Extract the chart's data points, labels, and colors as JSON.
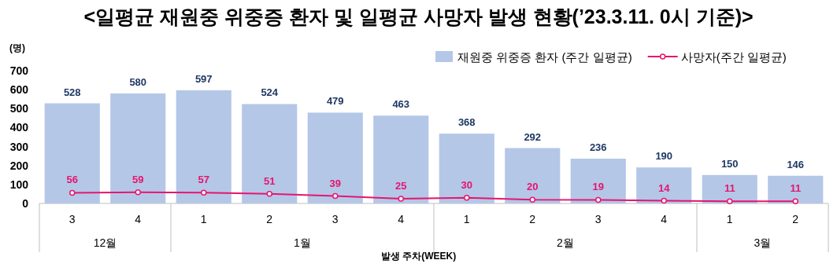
{
  "chart_data": {
    "type": "bar",
    "title": "<일평균 재원중 위중증 환자 및 일평균 사망자 발생 현황(’23.3.11. 0시 기준)>",
    "ylabel": "(명)",
    "xlabel": "발생 주차(WEEK)",
    "categories": [
      "3",
      "4",
      "1",
      "2",
      "3",
      "4",
      "1",
      "2",
      "3",
      "4",
      "1",
      "2"
    ],
    "series": [
      {
        "name": "재원중 위중증 환자 (주간 일평균)",
        "color": "#b4c7e7",
        "values": [
          528,
          580,
          597,
          524,
          479,
          463,
          368,
          292,
          236,
          190,
          150,
          146
        ]
      },
      {
        "name": "사망자(주간 일평균)",
        "type": "line",
        "color": "#e6156f",
        "marker": "circle",
        "values": [
          56,
          59,
          57,
          51,
          39,
          25,
          30,
          20,
          19,
          14,
          11,
          11
        ]
      }
    ],
    "annotations": [
      "12월",
      "1월",
      "2월",
      "3월"
    ],
    "ylim": [
      0,
      700
    ],
    "yticks": [
      0,
      100,
      200,
      300,
      400,
      500,
      600,
      700
    ],
    "data_labels": true,
    "legend": "top right",
    "grid": false
  }
}
